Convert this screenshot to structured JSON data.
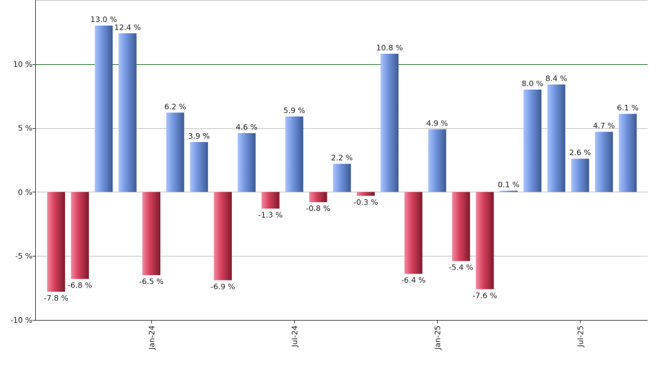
{
  "chart_data": {
    "type": "bar",
    "title": "",
    "xlabel": "",
    "ylabel": "",
    "ylim": [
      -10,
      15
    ],
    "y_ticks": [
      {
        "value": 10,
        "label": "10 %"
      },
      {
        "value": 5,
        "label": "5 %"
      },
      {
        "value": 0,
        "label": "0 %"
      },
      {
        "value": -5,
        "label": "-5 %"
      },
      {
        "value": -10,
        "label": "-10 %"
      }
    ],
    "x_ticks": [
      {
        "index": 4.5,
        "label": "Jan-24"
      },
      {
        "index": 10.5,
        "label": "Jul-24"
      },
      {
        "index": 16.5,
        "label": "Jan-25"
      },
      {
        "index": 22.5,
        "label": "Jul-25"
      }
    ],
    "values": [
      -7.8,
      -6.8,
      13.0,
      12.4,
      -6.5,
      6.2,
      3.9,
      -6.9,
      4.6,
      -1.3,
      5.9,
      -0.8,
      2.2,
      -0.3,
      10.8,
      -6.4,
      4.9,
      -5.4,
      -7.6,
      0.1,
      8.0,
      8.4,
      2.6,
      4.7,
      6.1
    ],
    "labels": [
      "-7.8 %",
      "-6.8 %",
      "13.0 %",
      "12.4 %",
      "-6.5 %",
      "6.2 %",
      "3.9 %",
      "-6.9 %",
      "4.6 %",
      "-1.3 %",
      "5.9 %",
      "-0.8 %",
      "2.2 %",
      "-0.3 %",
      "10.8 %",
      "-6.4 %",
      "4.9 %",
      "-5.4 %",
      "-7.6 %",
      "0.1 %",
      "8.0 %",
      "8.4 %",
      "2.6 %",
      "4.7 %",
      "6.1 %"
    ],
    "reference_line": 10,
    "grid": true,
    "colors": {
      "positive": "#6f8fd6",
      "negative": "#c8334d",
      "reference_line": "#2e7d2e",
      "grid": "#c8c8c8"
    }
  }
}
